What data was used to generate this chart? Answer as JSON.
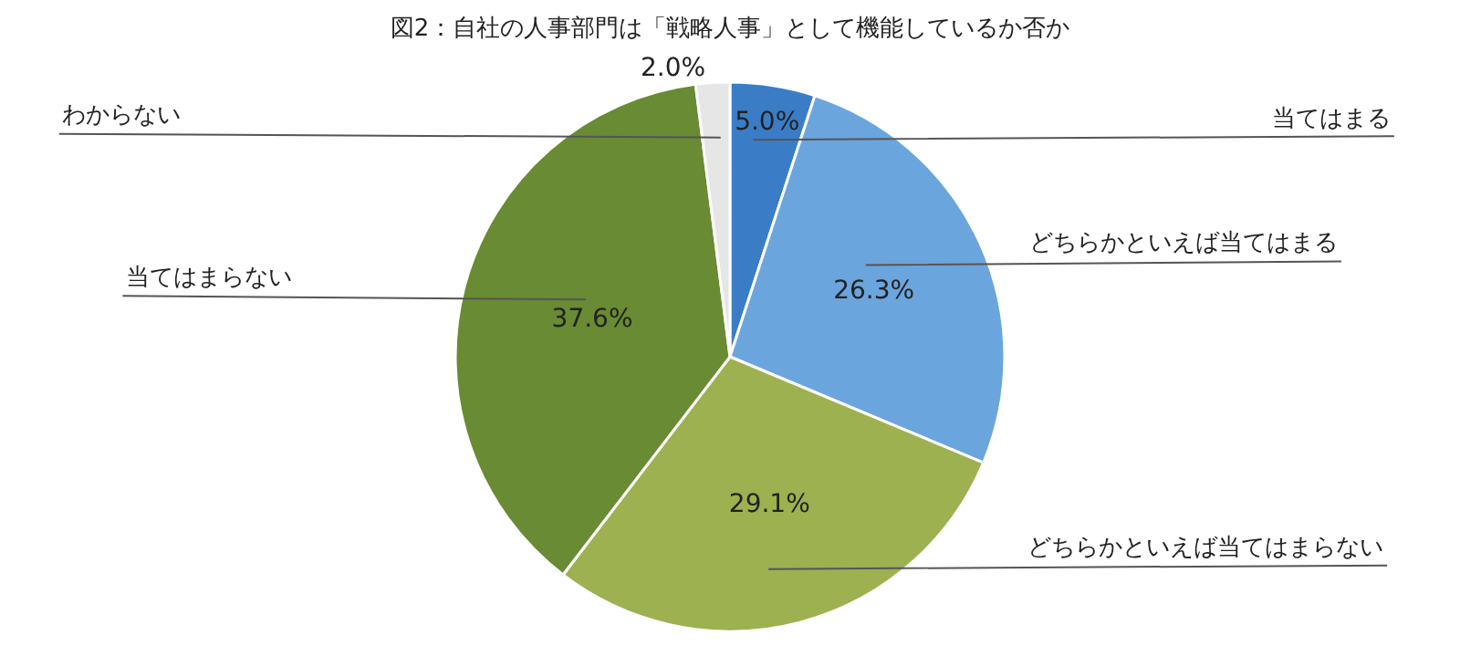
{
  "chart_data": {
    "type": "pie",
    "title": "図2：自社の人事部門は「戦略人事」として機能しているか否か",
    "categories": [
      "当てはまる",
      "どちらかといえば当てはまる",
      "どちらかといえば当てはまらない",
      "当てはまらない",
      "わからない"
    ],
    "values": [
      5.0,
      26.3,
      29.1,
      37.6,
      2.0
    ],
    "value_labels": [
      "5.0%",
      "26.3%",
      "29.1%",
      "37.6%",
      "2.0%"
    ],
    "colors": [
      "#3a7dc6",
      "#6ba5dd",
      "#9db150",
      "#688b33",
      "#e6e6e6"
    ],
    "legend": false
  }
}
